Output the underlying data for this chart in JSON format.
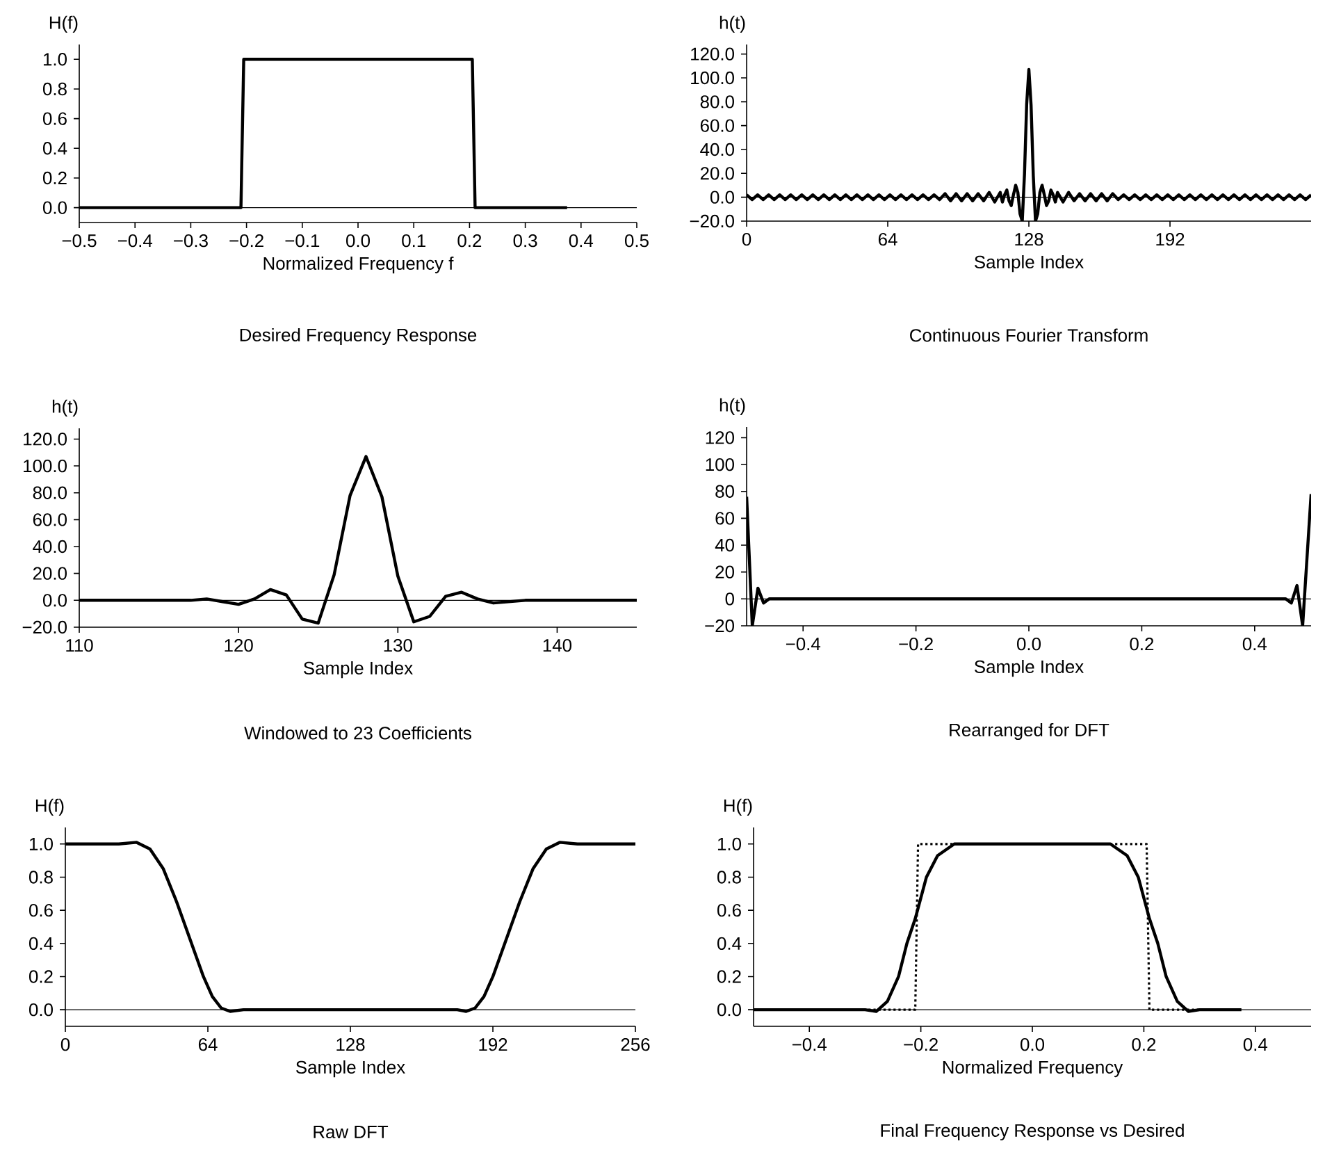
{
  "chart_data": [
    {
      "type": "line",
      "title": "Desired Frequency Response",
      "xlabel": "Normalized Frequency f",
      "ylabel": "H(f)",
      "x": [
        -0.5,
        -0.21,
        -0.205,
        0.205,
        0.21,
        0.375
      ],
      "values": [
        0,
        0,
        1,
        1,
        0,
        0
      ],
      "color": "#000000",
      "xlim": [
        -0.5,
        0.5
      ],
      "ylim": [
        -0.1,
        1.1
      ],
      "xticks": [
        {
          "value": -0.5,
          "label": "−0.5"
        },
        {
          "value": -0.4,
          "label": "−0.4"
        },
        {
          "value": -0.3,
          "label": "−0.3"
        },
        {
          "value": -0.2,
          "label": "−0.2"
        },
        {
          "value": -0.1,
          "label": "−0.1"
        },
        {
          "value": 0,
          "label": "0.0"
        },
        {
          "value": 0.1,
          "label": "0.1"
        },
        {
          "value": 0.2,
          "label": "0.2"
        },
        {
          "value": 0.3,
          "label": "0.3"
        },
        {
          "value": 0.4,
          "label": "0.4"
        },
        {
          "value": 0.5,
          "label": "0.5"
        }
      ],
      "yticks": [
        {
          "value": 0,
          "label": "0.0"
        },
        {
          "value": 0.2,
          "label": "0.2"
        },
        {
          "value": 0.4,
          "label": "0.4"
        },
        {
          "value": 0.6,
          "label": "0.6"
        },
        {
          "value": 0.8,
          "label": "0.8"
        },
        {
          "value": 1,
          "label": "1.0"
        }
      ],
      "ref_lines": [
        {
          "axis": "y",
          "value": 0
        }
      ]
    },
    {
      "type": "line",
      "title": "Continuous Fourier Transform",
      "xlabel": "Sample Index",
      "ylabel": "h(t)",
      "x": [
        0,
        2.5,
        5,
        7.5,
        10,
        12.5,
        15,
        17.5,
        20,
        22.5,
        25,
        27.5,
        30,
        32.5,
        35,
        37.5,
        40,
        42.5,
        45,
        47.5,
        50,
        52.5,
        55,
        57.5,
        60,
        62.5,
        65,
        67.5,
        70,
        72.5,
        75,
        77.5,
        80,
        82.5,
        85,
        87.5,
        90,
        92.5,
        95,
        97.5,
        100,
        102.5,
        105,
        107.5,
        110,
        112.5,
        115,
        116,
        117,
        118,
        119,
        120,
        121,
        122,
        123,
        124,
        125,
        126,
        127,
        128,
        129,
        130,
        131,
        132,
        133,
        134,
        135,
        136,
        137,
        138,
        139,
        140,
        141,
        143.5,
        146,
        148.5,
        151,
        153.5,
        156,
        158.5,
        161,
        163.5,
        166,
        168.5,
        171,
        173.5,
        176,
        178.5,
        181,
        183.5,
        186,
        188.5,
        191,
        193.5,
        196,
        198.5,
        201,
        203.5,
        206,
        208.5,
        211,
        213.5,
        216,
        218.5,
        221,
        223.5,
        226,
        228.5,
        231,
        233.5,
        236,
        238.5,
        241,
        243.5,
        246,
        248.5,
        251,
        253.5,
        256
      ],
      "values": [
        2,
        -2,
        2,
        -2,
        2,
        -2,
        2,
        -2,
        2,
        -2,
        2,
        -2,
        2,
        -2,
        2,
        -2,
        2,
        -2,
        2,
        -2,
        2,
        -2,
        2,
        -2,
        2,
        -2,
        2,
        -2,
        2,
        -2,
        2,
        -2,
        2,
        -2,
        2,
        -2,
        3,
        -3,
        3,
        -3,
        3,
        -3,
        3,
        -3,
        4,
        -4,
        4,
        -4,
        2,
        6,
        -3,
        -7,
        2,
        10,
        4,
        -14,
        -20,
        19,
        78,
        107,
        77,
        18,
        -20,
        -14,
        4,
        10,
        2,
        -7,
        -3,
        6,
        2,
        -4,
        4,
        -4,
        4,
        -3,
        3,
        -3,
        3,
        -3,
        3,
        -3,
        3,
        -2,
        2,
        -2,
        2,
        -2,
        2,
        -2,
        2,
        -2,
        2,
        -2,
        2,
        -2,
        2,
        -2,
        2,
        -2,
        2,
        -2,
        2,
        -2,
        2,
        -2,
        2,
        -2,
        2,
        -2,
        2,
        -2,
        2,
        -2,
        2,
        -2,
        2,
        -2,
        2
      ],
      "color": "#000000",
      "xlim": [
        0,
        256
      ],
      "ylim": [
        -20,
        128
      ],
      "xticks": [
        0,
        64,
        128,
        192
      ],
      "yticks": [
        {
          "value": -20,
          "label": "−20.0"
        },
        {
          "value": 0,
          "label": "0.0"
        },
        {
          "value": 20,
          "label": "20.0"
        },
        {
          "value": 40,
          "label": "40.0"
        },
        {
          "value": 60,
          "label": "60.0"
        },
        {
          "value": 80,
          "label": "80.0"
        },
        {
          "value": 100,
          "label": "100.0"
        },
        {
          "value": 120,
          "label": "120.0"
        }
      ],
      "ref_lines": [
        {
          "axis": "y",
          "value": 0
        }
      ]
    },
    {
      "type": "line",
      "title": "Windowed to 23 Coefficients",
      "xlabel": "Sample Index",
      "ylabel": "h(t)",
      "x": [
        110,
        115,
        116,
        117,
        118,
        119,
        120,
        121,
        122,
        123,
        124,
        125,
        126,
        127,
        128,
        129,
        130,
        131,
        132,
        133,
        134,
        135,
        136,
        137,
        138,
        139,
        140,
        145
      ],
      "values": [
        0,
        0,
        0,
        0,
        1,
        -1,
        -3,
        1,
        8,
        4,
        -14,
        -17,
        19,
        78,
        107,
        77,
        18,
        -16,
        -12,
        3,
        6,
        1,
        -2,
        -1,
        0,
        0,
        0,
        0
      ],
      "color": "#000000",
      "xlim": [
        110,
        145
      ],
      "ylim": [
        -20,
        128
      ],
      "xticks": [
        110,
        120,
        130,
        140
      ],
      "yticks": [
        {
          "value": -20,
          "label": "−20.0"
        },
        {
          "value": 0,
          "label": "0.0"
        },
        {
          "value": 20,
          "label": "20.0"
        },
        {
          "value": 40,
          "label": "40.0"
        },
        {
          "value": 60,
          "label": "60.0"
        },
        {
          "value": 80,
          "label": "80.0"
        },
        {
          "value": 100,
          "label": "100.0"
        },
        {
          "value": 120,
          "label": "120.0"
        }
      ],
      "ref_lines": [
        {
          "axis": "y",
          "value": 0
        }
      ]
    },
    {
      "type": "line",
      "title": "Rearranged for DFT",
      "xlabel": "Sample Index",
      "ylabel": "h(t)",
      "x": [
        -0.5,
        -0.49,
        -0.48,
        -0.47,
        -0.46,
        0.455,
        0.465,
        0.475,
        0.485,
        0.5
      ],
      "values": [
        76,
        -20,
        8,
        -3,
        0,
        0,
        -3,
        10,
        -20,
        78
      ],
      "color": "#000000",
      "xlim": [
        -0.5,
        0.5
      ],
      "ylim": [
        -20,
        128
      ],
      "xticks": [
        {
          "value": -0.4,
          "label": "−0.4"
        },
        {
          "value": -0.2,
          "label": "−0.2"
        },
        {
          "value": 0,
          "label": "0.0"
        },
        {
          "value": 0.2,
          "label": "0.2"
        },
        {
          "value": 0.4,
          "label": "0.4"
        }
      ],
      "yticks": [
        {
          "value": -20,
          "label": "−20"
        },
        0,
        20,
        40,
        60,
        80,
        100,
        120
      ],
      "ref_lines": [
        {
          "axis": "y",
          "value": 0
        }
      ]
    },
    {
      "type": "line",
      "title": "Raw DFT",
      "xlabel": "Sample Index",
      "ylabel": "H(f)",
      "x": [
        0,
        24,
        32,
        38,
        44,
        50,
        54,
        58,
        62,
        66,
        70,
        74,
        80,
        128,
        176,
        180,
        184,
        188,
        192,
        196,
        200,
        204,
        210,
        216,
        222,
        230,
        256
      ],
      "values": [
        1,
        1,
        1.01,
        0.97,
        0.85,
        0.65,
        0.5,
        0.35,
        0.2,
        0.08,
        0.01,
        -0.01,
        0,
        0,
        0,
        -0.01,
        0.01,
        0.08,
        0.2,
        0.35,
        0.5,
        0.65,
        0.85,
        0.97,
        1.01,
        1,
        1
      ],
      "color": "#000000",
      "xlim": [
        0,
        256
      ],
      "ylim": [
        -0.1,
        1.1
      ],
      "xticks": [
        0,
        64,
        128,
        192,
        256
      ],
      "yticks": [
        {
          "value": 0,
          "label": "0.0"
        },
        {
          "value": 0.2,
          "label": "0.2"
        },
        {
          "value": 0.4,
          "label": "0.4"
        },
        {
          "value": 0.6,
          "label": "0.6"
        },
        {
          "value": 0.8,
          "label": "0.8"
        },
        {
          "value": 1,
          "label": "1.0"
        }
      ],
      "ref_lines": [
        {
          "axis": "y",
          "value": 0
        }
      ]
    },
    {
      "type": "line",
      "title": "Final Frequency Response vs Desired",
      "xlabel": "Normalized Frequency",
      "ylabel": "H(f)",
      "series": [
        {
          "x": [
            -0.5,
            -0.3,
            -0.28,
            -0.26,
            -0.24,
            -0.225,
            -0.21,
            -0.19,
            -0.17,
            -0.14,
            0.14,
            0.17,
            0.19,
            0.21,
            0.225,
            0.24,
            0.26,
            0.28,
            0.3,
            0.375
          ],
          "values": [
            0,
            0,
            -0.01,
            0.05,
            0.2,
            0.4,
            0.55,
            0.8,
            0.93,
            1,
            1,
            0.93,
            0.8,
            0.55,
            0.4,
            0.2,
            0.05,
            -0.01,
            0,
            0
          ],
          "color": "#000000",
          "line_style": "solid"
        },
        {
          "x": [
            -0.5,
            -0.21,
            -0.205,
            0.205,
            0.21,
            0.375
          ],
          "values": [
            0,
            0,
            1,
            1,
            0,
            0
          ],
          "color": "#000000",
          "line_style": "dotted"
        }
      ],
      "xlim": [
        -0.5,
        0.5
      ],
      "ylim": [
        -0.1,
        1.1
      ],
      "xticks": [
        {
          "value": -0.4,
          "label": "−0.4"
        },
        {
          "value": -0.2,
          "label": "−0.2"
        },
        {
          "value": 0,
          "label": "0.0"
        },
        {
          "value": 0.2,
          "label": "0.2"
        },
        {
          "value": 0.4,
          "label": "0.4"
        }
      ],
      "yticks": [
        {
          "value": 0,
          "label": "0.0"
        },
        {
          "value": 0.2,
          "label": "0.2"
        },
        {
          "value": 0.4,
          "label": "0.4"
        },
        {
          "value": 0.6,
          "label": "0.6"
        },
        {
          "value": 0.8,
          "label": "0.8"
        },
        {
          "value": 1,
          "label": "1.0"
        }
      ],
      "ref_lines": [
        {
          "axis": "y",
          "value": 0
        }
      ]
    }
  ]
}
